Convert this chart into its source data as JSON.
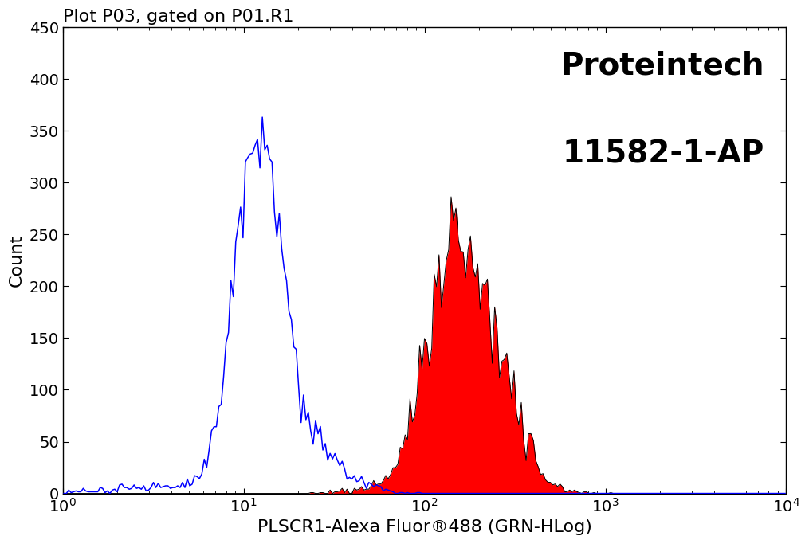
{
  "title": "Plot P03, gated on P01.R1",
  "xlabel": "PLSCR1-Alexa Fluor®488 (GRN-HLog)",
  "ylabel": "Count",
  "xlim": [
    1.0,
    10000.0
  ],
  "ylim": [
    0,
    450
  ],
  "yticks": [
    0,
    50,
    100,
    150,
    200,
    250,
    300,
    350,
    400,
    450
  ],
  "watermark_line1": "Proteintech",
  "watermark_line2": "11582-1-AP",
  "bg_color": "#ffffff",
  "blue_color": "#0000ff",
  "red_color": "#ff0000",
  "black_color": "#000000",
  "title_fontsize": 16,
  "label_fontsize": 16,
  "tick_fontsize": 14,
  "watermark_fontsize": 28
}
